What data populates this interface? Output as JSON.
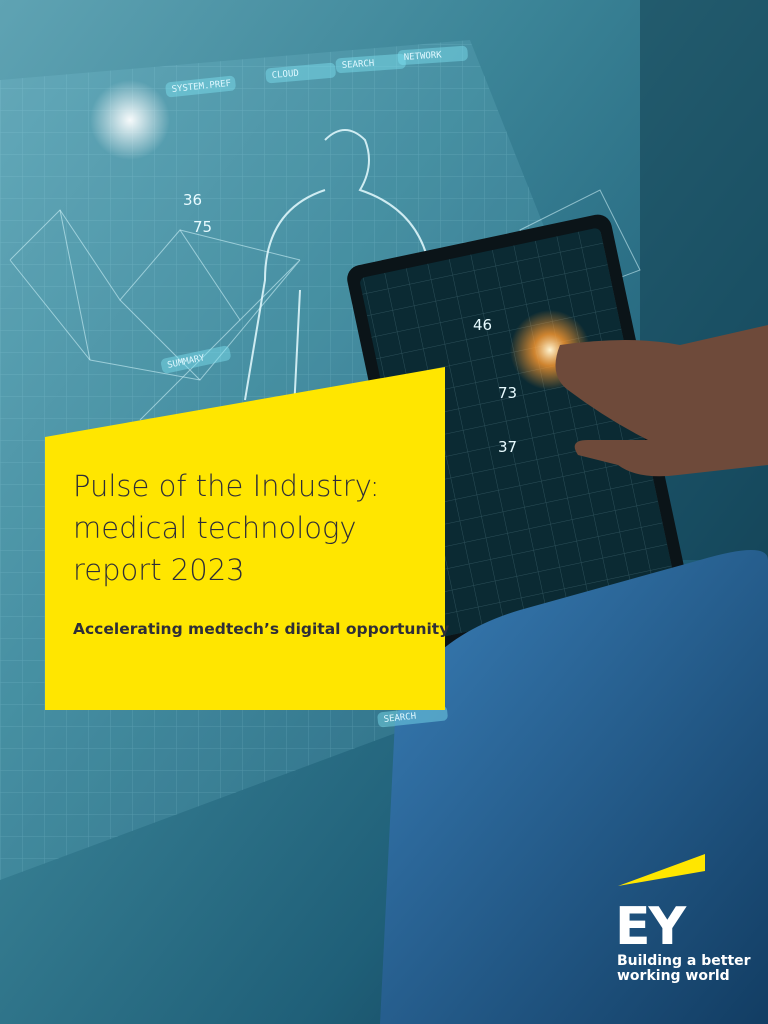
{
  "cover": {
    "title_lines": [
      "Pulse of the Industry:",
      "medical technology",
      "report 2023"
    ],
    "subtitle": "Accelerating medtech’s digital opportunity",
    "hud_labels": [
      "SYSTEM.PREF",
      "CLOUD",
      "SEARCH",
      "NETWORK",
      "SUMMARY",
      "SEARCH"
    ],
    "hud_numbers": [
      "36",
      "75",
      "46",
      "73",
      "37"
    ]
  },
  "logo": {
    "mark": "EY",
    "tagline_lines": [
      "Building a better",
      "working world"
    ]
  }
}
